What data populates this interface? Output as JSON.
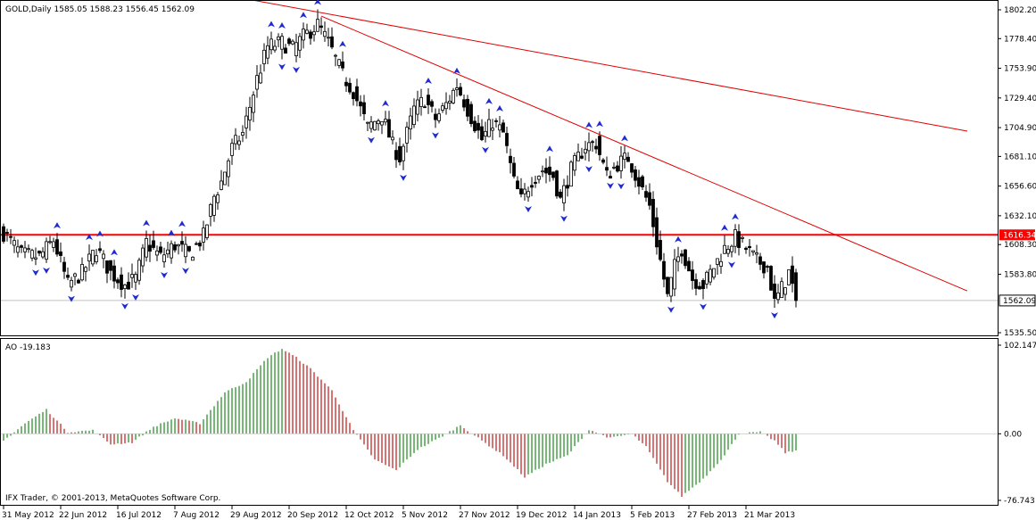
{
  "header": {
    "symbol_line": "GOLD,Daily  1585.05 1588.23 1556.45 1562.09",
    "indicator_line": "AO -19.183",
    "copyright": "IFX Trader, © 2001-2013, MetaQuotes Software Corp."
  },
  "price_axis": {
    "ticks": [
      "1802.20",
      "1778.40",
      "1753.90",
      "1729.40",
      "1704.90",
      "1681.10",
      "1656.60",
      "1632.10",
      "1608.30",
      "1583.80",
      "1535.50"
    ],
    "tick_values": [
      1802.2,
      1778.4,
      1753.9,
      1729.4,
      1704.9,
      1681.1,
      1656.6,
      1632.1,
      1608.3,
      1583.8,
      1535.5
    ],
    "current_price_label": "1562.09",
    "current_price": 1562.09,
    "hline_label": "1616.34",
    "hline_price": 1616.34
  },
  "ao_axis": {
    "ticks": [
      "102.147",
      "0.00",
      "-76.743"
    ],
    "tick_values": [
      102.147,
      0,
      -76.743
    ]
  },
  "time_axis": {
    "labels": [
      "31 May 2012",
      "22 Jun 2012",
      "16 Jul 2012",
      "7 Aug 2012",
      "29 Aug 2012",
      "20 Sep 2012",
      "12 Oct 2012",
      "5 Nov 2012",
      "27 Nov 2012",
      "19 Dec 2012",
      "14 Jan 2013",
      "5 Feb 2013",
      "27 Feb 2013",
      "21 Mar 2013"
    ],
    "label_bar_index": [
      0,
      16,
      32,
      48,
      64,
      80,
      96,
      112,
      128,
      144,
      160,
      176,
      192,
      208
    ]
  },
  "colors": {
    "bull_candle": "#ffffff",
    "bear_candle": "#000000",
    "trendline": "#e00000",
    "hline": "#ff0000",
    "fractal": "#1e2bd0",
    "ao_up": "#1a8a1a",
    "ao_down": "#c01515"
  },
  "chart_data": {
    "type": "candlestick",
    "symbol": "GOLD",
    "timeframe": "Daily",
    "ohlc": {
      "open": 1585.05,
      "high": 1588.23,
      "low": 1556.45,
      "close": 1562.09
    },
    "close_keypoints": [
      {
        "bar": 0,
        "price": 1618
      },
      {
        "bar": 5,
        "price": 1600
      },
      {
        "bar": 10,
        "price": 1598
      },
      {
        "bar": 14,
        "price": 1612
      },
      {
        "bar": 18,
        "price": 1575
      },
      {
        "bar": 22,
        "price": 1585
      },
      {
        "bar": 26,
        "price": 1605
      },
      {
        "bar": 30,
        "price": 1585
      },
      {
        "bar": 34,
        "price": 1575
      },
      {
        "bar": 37,
        "price": 1580
      },
      {
        "bar": 40,
        "price": 1610
      },
      {
        "bar": 44,
        "price": 1598
      },
      {
        "bar": 48,
        "price": 1608
      },
      {
        "bar": 52,
        "price": 1600
      },
      {
        "bar": 56,
        "price": 1615
      },
      {
        "bar": 59,
        "price": 1648
      },
      {
        "bar": 61,
        "price": 1660
      },
      {
        "bar": 64,
        "price": 1688
      },
      {
        "bar": 67,
        "price": 1700
      },
      {
        "bar": 71,
        "price": 1745
      },
      {
        "bar": 74,
        "price": 1772
      },
      {
        "bar": 78,
        "price": 1775
      },
      {
        "bar": 81,
        "price": 1770
      },
      {
        "bar": 84,
        "price": 1780
      },
      {
        "bar": 88,
        "price": 1790
      },
      {
        "bar": 91,
        "price": 1775
      },
      {
        "bar": 95,
        "price": 1748
      },
      {
        "bar": 98,
        "price": 1735
      },
      {
        "bar": 102,
        "price": 1705
      },
      {
        "bar": 106,
        "price": 1715
      },
      {
        "bar": 109,
        "price": 1690
      },
      {
        "bar": 111,
        "price": 1680
      },
      {
        "bar": 115,
        "price": 1720
      },
      {
        "bar": 118,
        "price": 1728
      },
      {
        "bar": 121,
        "price": 1712
      },
      {
        "bar": 124,
        "price": 1724
      },
      {
        "bar": 127,
        "price": 1740
      },
      {
        "bar": 130,
        "price": 1720
      },
      {
        "bar": 134,
        "price": 1695
      },
      {
        "bar": 137,
        "price": 1710
      },
      {
        "bar": 140,
        "price": 1700
      },
      {
        "bar": 143,
        "price": 1660
      },
      {
        "bar": 145,
        "price": 1645
      },
      {
        "bar": 148,
        "price": 1662
      },
      {
        "bar": 151,
        "price": 1670
      },
      {
        "bar": 154,
        "price": 1665
      },
      {
        "bar": 156,
        "price": 1645
      },
      {
        "bar": 159,
        "price": 1670
      },
      {
        "bar": 163,
        "price": 1690
      },
      {
        "bar": 166,
        "price": 1692
      },
      {
        "bar": 169,
        "price": 1665
      },
      {
        "bar": 172,
        "price": 1675
      },
      {
        "bar": 175,
        "price": 1680
      },
      {
        "bar": 178,
        "price": 1660
      },
      {
        "bar": 181,
        "price": 1640
      },
      {
        "bar": 183,
        "price": 1610
      },
      {
        "bar": 186,
        "price": 1565
      },
      {
        "bar": 188,
        "price": 1590
      },
      {
        "bar": 190,
        "price": 1605
      },
      {
        "bar": 193,
        "price": 1580
      },
      {
        "bar": 196,
        "price": 1575
      },
      {
        "bar": 199,
        "price": 1590
      },
      {
        "bar": 202,
        "price": 1605
      },
      {
        "bar": 205,
        "price": 1614
      },
      {
        "bar": 208,
        "price": 1605
      },
      {
        "bar": 211,
        "price": 1595
      },
      {
        "bar": 214,
        "price": 1590
      },
      {
        "bar": 216,
        "price": 1560
      },
      {
        "bar": 218,
        "price": 1572
      },
      {
        "bar": 220,
        "price": 1585
      },
      {
        "bar": 222,
        "price": 1562
      }
    ],
    "total_bars": 223,
    "trendlines": [
      {
        "from": {
          "bar": 48,
          "price": 1822
        },
        "to": {
          "bar": 270,
          "price": 1702
        }
      },
      {
        "from": {
          "bar": 89,
          "price": 1797
        },
        "to": {
          "bar": 270,
          "price": 1570
        }
      }
    ],
    "horizontal_lines": [
      1616.34
    ],
    "price_range": [
      1535.5,
      1802.2
    ],
    "indicator": {
      "name": "AO",
      "value": -19.183,
      "range": [
        -76.743,
        102.147
      ],
      "keypoints": [
        {
          "bar": 0,
          "value": -8
        },
        {
          "bar": 6,
          "value": 12
        },
        {
          "bar": 12,
          "value": 28
        },
        {
          "bar": 18,
          "value": 2
        },
        {
          "bar": 25,
          "value": 4
        },
        {
          "bar": 30,
          "value": -12
        },
        {
          "bar": 36,
          "value": -10
        },
        {
          "bar": 42,
          "value": 8
        },
        {
          "bar": 48,
          "value": 18
        },
        {
          "bar": 55,
          "value": 12
        },
        {
          "bar": 62,
          "value": 48
        },
        {
          "bar": 68,
          "value": 60
        },
        {
          "bar": 74,
          "value": 88
        },
        {
          "bar": 78,
          "value": 98
        },
        {
          "bar": 82,
          "value": 88
        },
        {
          "bar": 86,
          "value": 75
        },
        {
          "bar": 92,
          "value": 50
        },
        {
          "bar": 98,
          "value": 4
        },
        {
          "bar": 104,
          "value": -30
        },
        {
          "bar": 110,
          "value": -42
        },
        {
          "bar": 116,
          "value": -18
        },
        {
          "bar": 122,
          "value": -5
        },
        {
          "bar": 128,
          "value": 10
        },
        {
          "bar": 134,
          "value": -8
        },
        {
          "bar": 140,
          "value": -25
        },
        {
          "bar": 146,
          "value": -50
        },
        {
          "bar": 152,
          "value": -35
        },
        {
          "bar": 158,
          "value": -25
        },
        {
          "bar": 164,
          "value": 5
        },
        {
          "bar": 170,
          "value": -5
        },
        {
          "bar": 176,
          "value": 0
        },
        {
          "bar": 180,
          "value": -15
        },
        {
          "bar": 186,
          "value": -55
        },
        {
          "bar": 190,
          "value": -72
        },
        {
          "bar": 196,
          "value": -52
        },
        {
          "bar": 202,
          "value": -25
        },
        {
          "bar": 206,
          "value": 0
        },
        {
          "bar": 212,
          "value": 2
        },
        {
          "bar": 216,
          "value": -8
        },
        {
          "bar": 219,
          "value": -22
        },
        {
          "bar": 222,
          "value": -19.183
        }
      ]
    }
  }
}
